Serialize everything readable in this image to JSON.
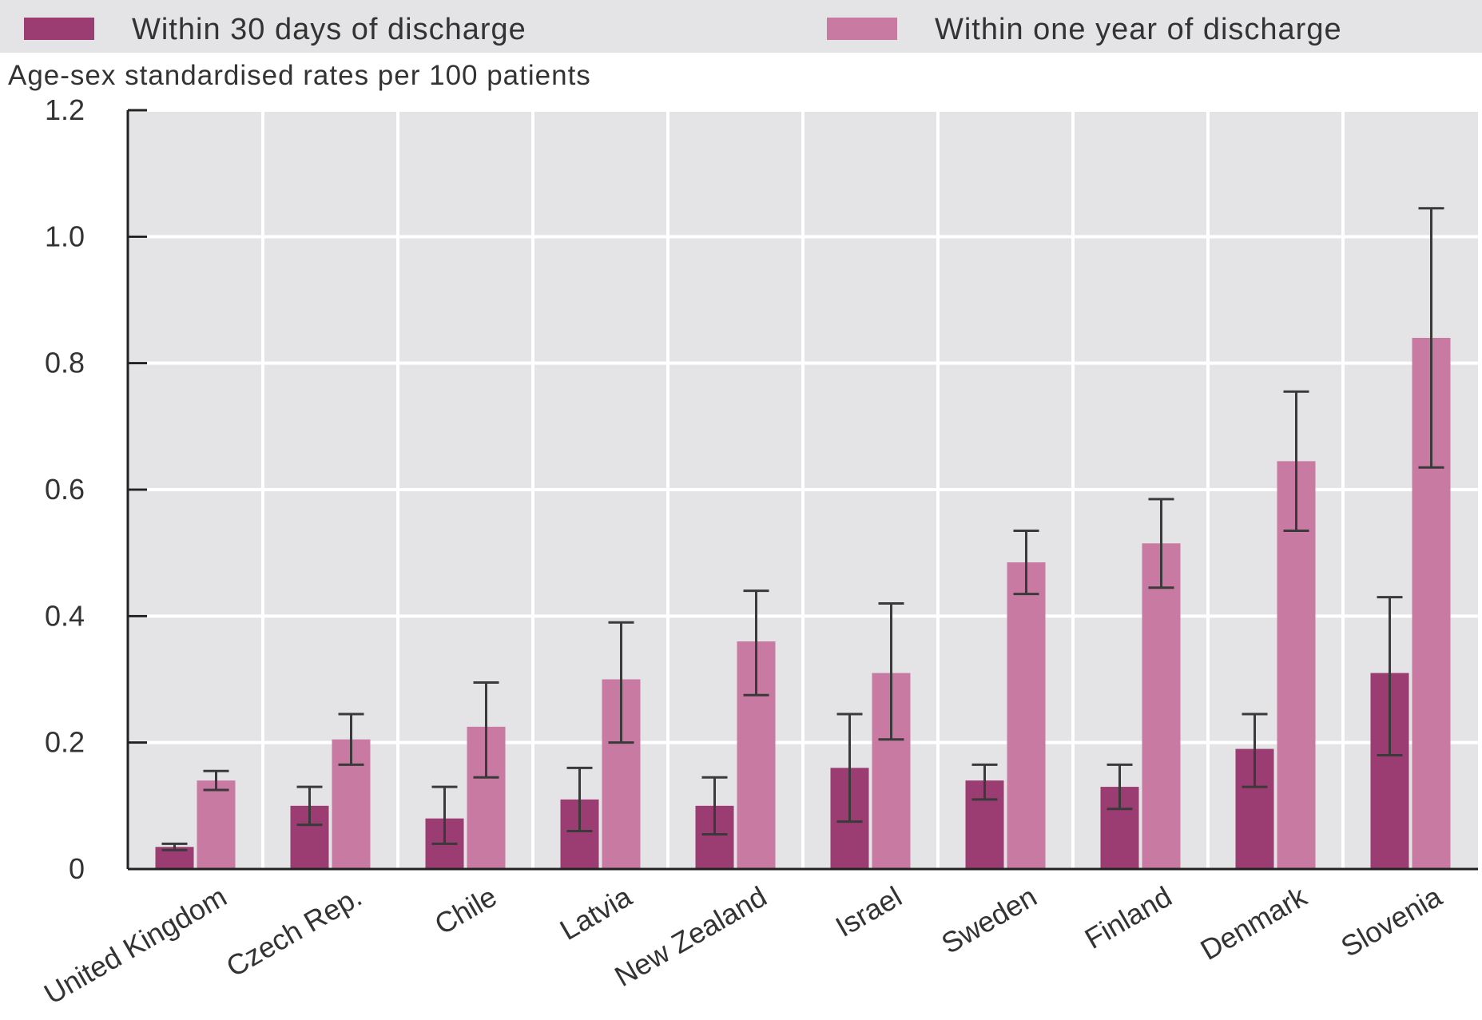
{
  "chart_data": {
    "type": "bar",
    "title": "",
    "ylabel": "Age-sex standardised rates per 100 patients",
    "xlabel": "",
    "ylim": [
      0,
      1.2
    ],
    "yticks": [
      0,
      0.2,
      0.4,
      0.6,
      0.8,
      1.0,
      1.2
    ],
    "ytick_labels": [
      "0",
      "0.2",
      "0.4",
      "0.6",
      "0.8",
      "1.0",
      "1.2"
    ],
    "grid": true,
    "legend_position": "top",
    "categories": [
      "United Kingdom",
      "Czech Rep.",
      "Chile",
      "Latvia",
      "New Zealand",
      "Israel",
      "Sweden",
      "Finland",
      "Denmark",
      "Slovenia"
    ],
    "series": [
      {
        "name": "Within 30 days of discharge",
        "color": "#9b3d72",
        "values": [
          0.035,
          0.1,
          0.08,
          0.11,
          0.1,
          0.16,
          0.14,
          0.13,
          0.19,
          0.31
        ],
        "error_low": [
          0.03,
          0.07,
          0.04,
          0.06,
          0.055,
          0.075,
          0.11,
          0.095,
          0.13,
          0.18
        ],
        "error_high": [
          0.04,
          0.13,
          0.13,
          0.16,
          0.145,
          0.245,
          0.165,
          0.165,
          0.245,
          0.43
        ]
      },
      {
        "name": "Within one year of discharge",
        "color": "#c97aa3",
        "values": [
          0.14,
          0.205,
          0.225,
          0.3,
          0.36,
          0.31,
          0.485,
          0.515,
          0.645,
          0.84
        ],
        "error_low": [
          0.125,
          0.165,
          0.145,
          0.2,
          0.275,
          0.205,
          0.435,
          0.445,
          0.535,
          0.635
        ],
        "error_high": [
          0.155,
          0.245,
          0.295,
          0.39,
          0.44,
          0.42,
          0.535,
          0.585,
          0.755,
          1.045
        ]
      }
    ]
  }
}
